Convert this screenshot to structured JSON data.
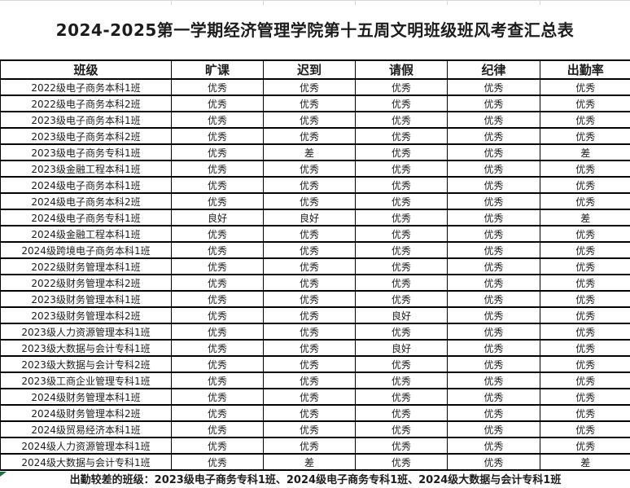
{
  "page": {
    "title": "2024-2025第一学期经济管理学院第十五周文明班级班风考查汇总表"
  },
  "table": {
    "columns": [
      "班级",
      "旷课",
      "迟到",
      "请假",
      "纪律",
      "出勤率"
    ],
    "rows": [
      {
        "class_name": "2022级电子商务本科1班",
        "values": [
          "优秀",
          "优秀",
          "优秀",
          "优秀",
          "优秀"
        ]
      },
      {
        "class_name": "2022级电子商务本科2班",
        "values": [
          "优秀",
          "优秀",
          "优秀",
          "优秀",
          "优秀"
        ]
      },
      {
        "class_name": "2023级电子商务本科1班",
        "values": [
          "优秀",
          "优秀",
          "优秀",
          "优秀",
          "优秀"
        ]
      },
      {
        "class_name": "2023级电子商务本科2班",
        "values": [
          "优秀",
          "优秀",
          "优秀",
          "优秀",
          "优秀"
        ]
      },
      {
        "class_name": "2023级电子商务专科1班",
        "values": [
          "优秀",
          "差",
          "优秀",
          "优秀",
          "差"
        ]
      },
      {
        "class_name": "2023级金融工程本科1班",
        "values": [
          "优秀",
          "优秀",
          "优秀",
          "优秀",
          "优秀"
        ]
      },
      {
        "class_name": "2024级电子商务本科1班",
        "values": [
          "优秀",
          "优秀",
          "优秀",
          "优秀",
          "优秀"
        ]
      },
      {
        "class_name": "2024级电子商务本科2班",
        "values": [
          "优秀",
          "优秀",
          "优秀",
          "优秀",
          "优秀"
        ]
      },
      {
        "class_name": "2024级电子商务专科1班",
        "values": [
          "良好",
          "良好",
          "优秀",
          "优秀",
          "差"
        ]
      },
      {
        "class_name": "2024级金融工程本科1班",
        "values": [
          "优秀",
          "优秀",
          "优秀",
          "优秀",
          "优秀"
        ]
      },
      {
        "class_name": "2024级跨境电子商务本科1班",
        "values": [
          "优秀",
          "优秀",
          "优秀",
          "优秀",
          "优秀"
        ]
      },
      {
        "class_name": "2022级财务管理本科1班",
        "values": [
          "优秀",
          "优秀",
          "优秀",
          "优秀",
          "优秀"
        ]
      },
      {
        "class_name": "2022级财务管理本科2班",
        "values": [
          "优秀",
          "优秀",
          "优秀",
          "优秀",
          "优秀"
        ]
      },
      {
        "class_name": "2023级财务管理本科1班",
        "values": [
          "优秀",
          "优秀",
          "优秀",
          "优秀",
          "优秀"
        ]
      },
      {
        "class_name": "2023级财务管理本科2班",
        "values": [
          "优秀",
          "优秀",
          "良好",
          "优秀",
          "优秀"
        ]
      },
      {
        "class_name": "2023级人力资源管理本科1班",
        "values": [
          "优秀",
          "优秀",
          "优秀",
          "优秀",
          "优秀"
        ]
      },
      {
        "class_name": "2023级大数据与会计专科1班",
        "values": [
          "优秀",
          "优秀",
          "良好",
          "优秀",
          "优秀"
        ]
      },
      {
        "class_name": "2023级大数据与会计专科2班",
        "values": [
          "优秀",
          "优秀",
          "优秀",
          "优秀",
          "优秀"
        ]
      },
      {
        "class_name": "2023级工商企业管理专科1班",
        "values": [
          "优秀",
          "优秀",
          "优秀",
          "优秀",
          "优秀"
        ]
      },
      {
        "class_name": "2024级财务管理本科1班",
        "values": [
          "优秀",
          "优秀",
          "优秀",
          "优秀",
          "优秀"
        ]
      },
      {
        "class_name": "2024级财务管理本科2班",
        "values": [
          "优秀",
          "优秀",
          "优秀",
          "优秀",
          "优秀"
        ]
      },
      {
        "class_name": "2024级贸易经济本科1班",
        "values": [
          "优秀",
          "优秀",
          "优秀",
          "优秀",
          "优秀"
        ]
      },
      {
        "class_name": "2024级人力资源管理本科1班",
        "values": [
          "优秀",
          "优秀",
          "优秀",
          "优秀",
          "优秀"
        ]
      },
      {
        "class_name": "2024级大数据与会计专科1班",
        "values": [
          "优秀",
          "差",
          "优秀",
          "优秀",
          "差"
        ]
      }
    ]
  },
  "footer": {
    "note": "出勤较差的班级：2023级电子商务专科1班、2024级电子商务专科1班、2024级大数据与会计专科1班"
  },
  "colors": {
    "grid_line": "#000000",
    "remnant_grid_line": "#d6d6d6",
    "flag_green": "#1d7044",
    "text": "#1c1c1c"
  }
}
